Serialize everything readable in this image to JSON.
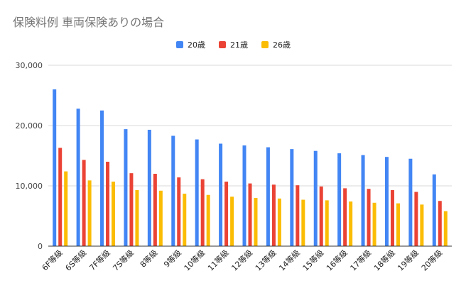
{
  "chart_data": {
    "type": "bar",
    "title": "保険料例 車両保険ありの場合",
    "xlabel": "",
    "ylabel": "",
    "ylim": [
      0,
      30000
    ],
    "yticks": [
      0,
      10000,
      20000,
      30000
    ],
    "ytick_labels": [
      "0",
      "10,000",
      "20,000",
      "30,000"
    ],
    "grid": true,
    "legend_position": "top",
    "categories": [
      "6F等級",
      "6S等級",
      "7F等級",
      "7S等級",
      "8等級",
      "9等級",
      "10等級",
      "11等級",
      "12等級",
      "13等級",
      "14等級",
      "15等級",
      "16等級",
      "17等級",
      "18等級",
      "19等級",
      "20等級"
    ],
    "series": [
      {
        "name": "20歳",
        "color": "#4285f4",
        "values": [
          26000,
          22800,
          22500,
          19400,
          19300,
          18300,
          17700,
          17000,
          16700,
          16400,
          16100,
          15800,
          15400,
          15100,
          14800,
          14500,
          11900
        ]
      },
      {
        "name": "21歳",
        "color": "#ea4335",
        "values": [
          16300,
          14300,
          14000,
          12100,
          12000,
          11400,
          11100,
          10700,
          10400,
          10200,
          10100,
          9900,
          9600,
          9500,
          9300,
          9000,
          7500
        ]
      },
      {
        "name": "26歳",
        "color": "#fbbc04",
        "values": [
          12400,
          10900,
          10700,
          9300,
          9200,
          8700,
          8500,
          8200,
          8000,
          7900,
          7700,
          7600,
          7400,
          7200,
          7100,
          6900,
          5800
        ]
      }
    ]
  }
}
